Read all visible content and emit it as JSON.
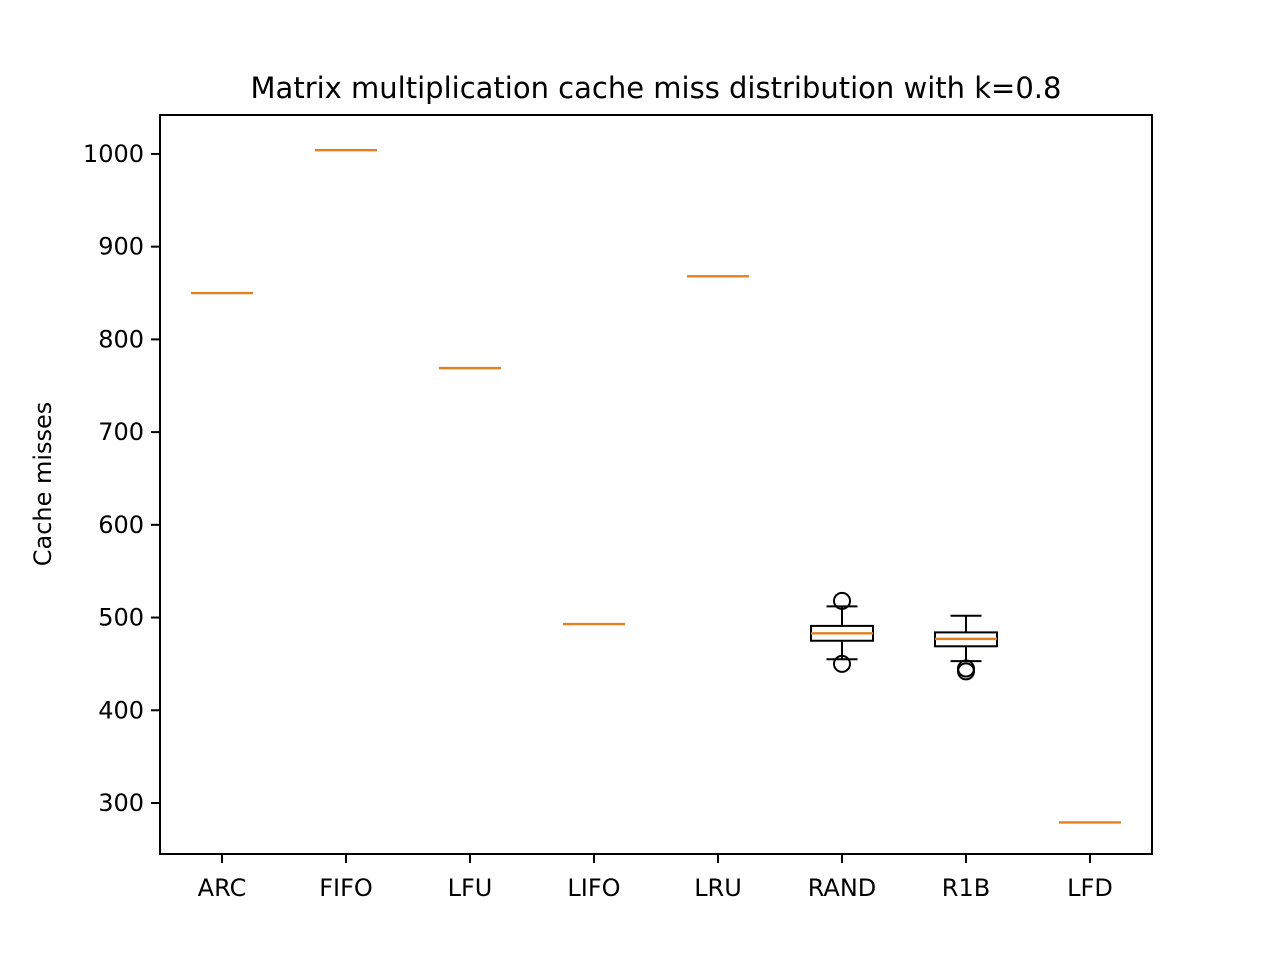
{
  "chart_data": {
    "type": "boxplot",
    "title": "Matrix multiplication cache miss distribution with k=0.8",
    "xlabel": "",
    "ylabel": "Cache misses",
    "ylim": [
      245,
      1042
    ],
    "yticks": [
      300,
      400,
      500,
      600,
      700,
      800,
      900,
      1000
    ],
    "grid": false,
    "categories": [
      "ARC",
      "FIFO",
      "LFU",
      "LIFO",
      "LRU",
      "RAND",
      "R1B",
      "LFD"
    ],
    "boxes": [
      {
        "category": "ARC",
        "whislo": 850,
        "q1": 850,
        "med": 850,
        "q3": 850,
        "whishi": 850,
        "fliers": []
      },
      {
        "category": "FIFO",
        "whislo": 1004,
        "q1": 1004,
        "med": 1004,
        "q3": 1004,
        "whishi": 1004,
        "fliers": []
      },
      {
        "category": "LFU",
        "whislo": 769,
        "q1": 769,
        "med": 769,
        "q3": 769,
        "whishi": 769,
        "fliers": []
      },
      {
        "category": "LIFO",
        "whislo": 493,
        "q1": 493,
        "med": 493,
        "q3": 493,
        "whishi": 493,
        "fliers": []
      },
      {
        "category": "LRU",
        "whislo": 868,
        "q1": 868,
        "med": 868,
        "q3": 868,
        "whishi": 868,
        "fliers": []
      },
      {
        "category": "RAND",
        "whislo": 455,
        "q1": 475,
        "med": 483,
        "q3": 491,
        "whishi": 512,
        "fliers": [
          518,
          450
        ]
      },
      {
        "category": "R1B",
        "whislo": 453,
        "q1": 469,
        "med": 477,
        "q3": 484,
        "whishi": 502,
        "fliers": [
          445,
          442
        ]
      },
      {
        "category": "LFD",
        "whislo": 279,
        "q1": 279,
        "med": 279,
        "q3": 279,
        "whishi": 279,
        "fliers": []
      }
    ],
    "colors": {
      "median": "#e08020",
      "box": "#000000",
      "frame": "#000000",
      "background": "#ffffff"
    }
  }
}
